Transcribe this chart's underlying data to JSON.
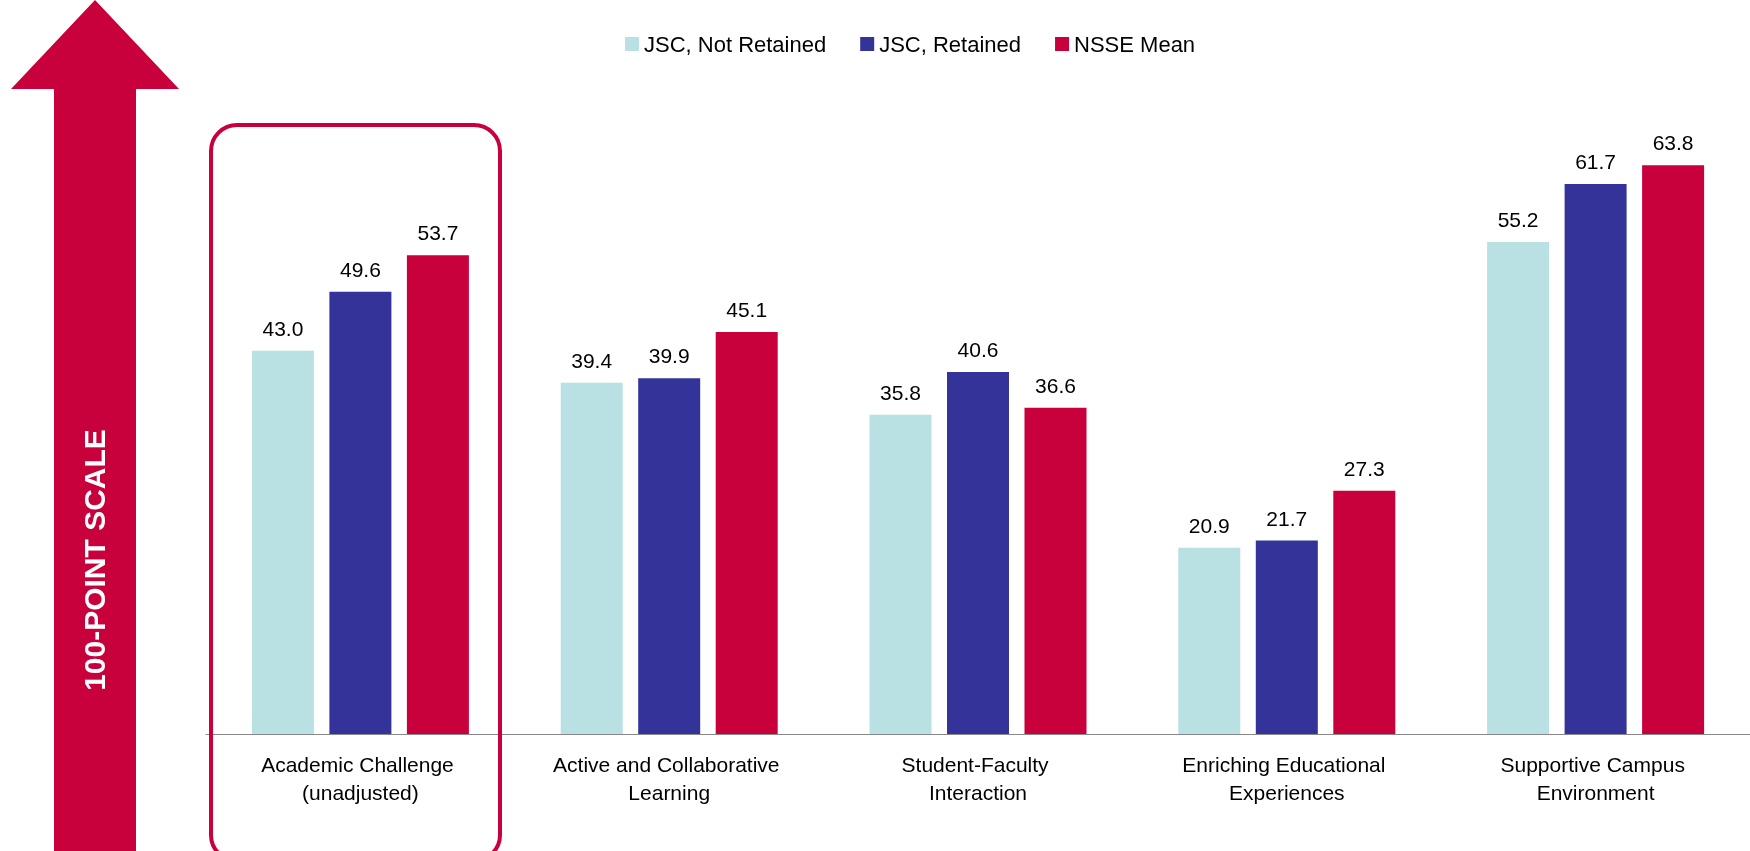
{
  "chart_data": {
    "type": "bar",
    "ylabel": "100-POINT SCALE",
    "categories": [
      "Academic Challenge (unadjusted)",
      "Active and Collaborative Learning",
      "Student-Faculty Interaction",
      "Enriching Educational Experiences",
      "Supportive Campus Environment"
    ],
    "series": [
      {
        "name": "JSC, Not Retained",
        "color": "#b9e0e3",
        "values": [
          43.0,
          39.4,
          35.8,
          20.9,
          55.2
        ],
        "value_labels": [
          "43.0",
          "39.4",
          "35.8",
          "20.9",
          "55.2"
        ]
      },
      {
        "name": "JSC, Retained",
        "color": "#333399",
        "values": [
          49.6,
          39.9,
          40.6,
          21.7,
          61.7
        ],
        "value_labels": [
          "49.6",
          "39.9",
          "40.6",
          "21.7",
          "61.7"
        ]
      },
      {
        "name": "NSSE Mean",
        "color": "#c8003c",
        "values": [
          53.7,
          45.1,
          36.6,
          27.3,
          63.8
        ],
        "value_labels": [
          "53.7",
          "45.1",
          "36.6",
          "27.3",
          "63.8"
        ]
      }
    ],
    "grid": false,
    "legend": "top"
  }
}
